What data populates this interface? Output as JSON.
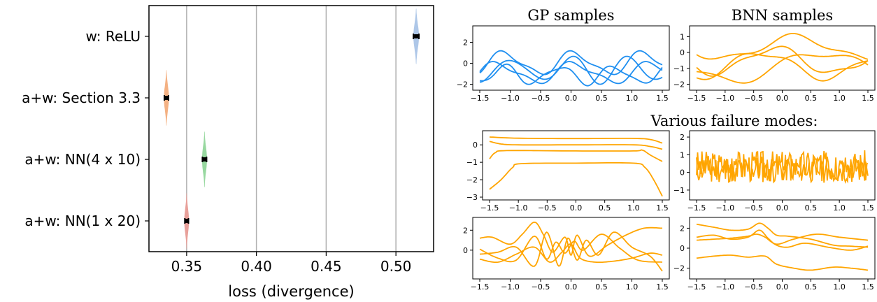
{
  "chart_data": [
    {
      "type": "violin",
      "xlabel": "loss (divergence)",
      "ylabel": "",
      "xlim": [
        0.323,
        0.527
      ],
      "xticks": [
        "0.35",
        "0.40",
        "0.45",
        "0.50"
      ],
      "xtick_values": [
        0.35,
        0.4,
        0.45,
        0.5
      ],
      "grid": "vertical",
      "categories": [
        "w: ReLU",
        "a+w: Section 3.3",
        "a+w: NN(4 x 10)",
        "a+w: NN(1 x 20)"
      ],
      "series": [
        {
          "mean": 0.5145,
          "spread": 0.002,
          "min": 0.5125,
          "max": 0.5165,
          "color": "#aec7e8"
        },
        {
          "mean": 0.3355,
          "spread": 0.0018,
          "min": 0.334,
          "max": 0.337,
          "color": "#f4b183"
        },
        {
          "mean": 0.3628,
          "spread": 0.0018,
          "min": 0.3613,
          "max": 0.3643,
          "color": "#98d8a0"
        },
        {
          "mean": 0.35,
          "spread": 0.0017,
          "min": 0.3487,
          "max": 0.3513,
          "color": "#e8a09a"
        }
      ]
    },
    {
      "type": "line",
      "title": "GP samples",
      "xlim": [
        -1.5,
        1.5
      ],
      "ylim": [
        -2.3,
        3.3
      ],
      "xticks": [
        "−1.5",
        "−1.0",
        "−0.5",
        "0.0",
        "0.5",
        "1.0",
        "1.5"
      ],
      "yticks": [
        "−2",
        "0",
        "2"
      ],
      "ytick_values": [
        -2,
        0,
        2
      ],
      "color": "#1f8ff0",
      "series": [
        {
          "waves": [
            [
              0.0,
              0.0,
              2.2,
              0.0
            ],
            [
              1.0,
              5.5,
              0.8,
              0.5
            ],
            [
              0.3,
              11.0,
              0.3,
              2.0
            ]
          ]
        },
        {
          "waves": [
            [
              -0.6,
              0.0,
              1.1,
              0.0
            ],
            [
              1.1,
              6.5,
              0.6,
              1.0
            ],
            [
              0.3,
              9.0,
              0.4,
              0.0
            ]
          ]
        },
        {
          "waves": [
            [
              -1.1,
              0.0,
              0.6,
              0.0
            ],
            [
              0.8,
              7.0,
              0.9,
              2.0
            ],
            [
              0.25,
              12.0,
              0.3,
              1.0
            ]
          ]
        },
        {
          "waves": [
            [
              -0.9,
              0.0,
              0.9,
              0.0
            ],
            [
              0.9,
              5.0,
              1.3,
              0.0
            ],
            [
              0.3,
              10.0,
              0.5,
              2.0
            ]
          ]
        }
      ]
    },
    {
      "type": "line",
      "title": "BNN samples",
      "xlim": [
        -1.5,
        1.5
      ],
      "ylim": [
        -2.2,
        1.5
      ],
      "xticks": [
        "−1.5",
        "−1.0",
        "−0.5",
        "0.0",
        "0.5",
        "1.0",
        "1.5"
      ],
      "yticks": [
        "−2",
        "−1",
        "0",
        "1"
      ],
      "ytick_values": [
        -2,
        -1,
        0,
        1
      ],
      "color": "#ffa500",
      "series": [
        {
          "waves": [
            [
              0.3,
              0.0,
              0.7,
              0.0
            ],
            [
              0.7,
              2.5,
              1.0,
              0.0
            ],
            [
              0.2,
              6.0,
              0.6,
              0.0
            ]
          ]
        },
        {
          "waves": [
            [
              -0.5,
              0.0,
              0.9,
              0.0
            ],
            [
              0.8,
              3.0,
              2.0,
              0.0
            ],
            [
              0.2,
              7.0,
              0.9,
              0.0
            ]
          ]
        },
        {
          "waves": [
            [
              -0.9,
              0.0,
              0.3,
              0.0
            ],
            [
              0.9,
              2.0,
              0.2,
              0.0
            ],
            [
              0.25,
              5.0,
              1.2,
              0.0
            ]
          ]
        },
        {
          "waves": [
            [
              -0.8,
              0.0,
              1.6,
              0.0
            ],
            [
              0.8,
              2.8,
              2.6,
              0.0
            ],
            [
              0.2,
              6.5,
              0.3,
              0.0
            ]
          ]
        }
      ]
    },
    {
      "type": "line",
      "title": "Various failure modes:",
      "xlim": [
        -1.5,
        1.5
      ],
      "ylim": [
        -3.0,
        0.65
      ],
      "xticks": [
        "−1.5",
        "−1.0",
        "−0.5",
        "0.0",
        "0.5",
        "1.0",
        "1.5"
      ],
      "yticks": [
        "−3",
        "−2",
        "−1",
        "0"
      ],
      "ytick_values": [
        -3,
        -2,
        -1,
        0
      ],
      "color": "#ffa500",
      "series": [
        {
          "points": [
            [
              -1.5,
              0.45
            ],
            [
              -1.0,
              0.38
            ],
            [
              0.0,
              0.36
            ],
            [
              1.0,
              0.37
            ],
            [
              1.3,
              0.3
            ],
            [
              1.5,
              0.1
            ]
          ]
        },
        {
          "points": [
            [
              -1.5,
              0.2
            ],
            [
              -1.3,
              0.05
            ],
            [
              -1.0,
              0.0
            ],
            [
              0.0,
              0.0
            ],
            [
              1.0,
              0.0
            ],
            [
              1.3,
              -0.1
            ],
            [
              1.5,
              -0.25
            ]
          ]
        },
        {
          "points": [
            [
              -1.5,
              -0.8
            ],
            [
              -1.4,
              -0.45
            ],
            [
              -1.2,
              -0.33
            ],
            [
              0.0,
              -0.35
            ],
            [
              1.0,
              -0.35
            ],
            [
              1.15,
              -0.3
            ],
            [
              1.3,
              -0.6
            ],
            [
              1.5,
              -0.95
            ]
          ]
        },
        {
          "points": [
            [
              -1.5,
              -2.55
            ],
            [
              -1.3,
              -2.0
            ],
            [
              -1.1,
              -1.3
            ],
            [
              -0.95,
              -1.08
            ],
            [
              0.0,
              -1.05
            ],
            [
              1.0,
              -1.05
            ],
            [
              1.2,
              -1.3
            ],
            [
              1.35,
              -2.0
            ],
            [
              1.5,
              -2.95
            ]
          ]
        }
      ]
    },
    {
      "type": "line",
      "title": "",
      "xlim": [
        -1.5,
        1.5
      ],
      "ylim": [
        -1.4,
        2.2
      ],
      "xticks": [
        "−1.5",
        "−1.0",
        "−0.5",
        "0.0",
        "0.5",
        "1.0",
        "1.5"
      ],
      "yticks": [
        "−1",
        "0",
        "1",
        "2"
      ],
      "ytick_values": [
        -1,
        0,
        1,
        2
      ],
      "color": "#ffa500",
      "series": [
        {
          "noise": {
            "base": 0.35,
            "amp": 0.9,
            "n": 160,
            "seed": 3
          }
        },
        {
          "noise": {
            "base": 0.2,
            "amp": 0.8,
            "n": 160,
            "seed": 11
          }
        }
      ]
    },
    {
      "type": "line",
      "title": "",
      "xlim": [
        -1.5,
        1.5
      ],
      "ylim": [
        -2.6,
        3.0
      ],
      "xticks": [
        "−1.5",
        "−1.0",
        "−0.5",
        "0.0",
        "0.5",
        "1.0",
        "1.5"
      ],
      "yticks": [
        "0",
        "2"
      ],
      "ytick_values": [
        0,
        2
      ],
      "color": "#ffa500",
      "series": [
        {
          "points": [
            [
              -1.5,
              1.2
            ],
            [
              -1.3,
              1.3
            ],
            [
              -1.0,
              0.6
            ],
            [
              -0.8,
              1.6
            ],
            [
              -0.6,
              2.8
            ],
            [
              -0.45,
              1.5
            ],
            [
              -0.3,
              -0.2
            ],
            [
              -0.1,
              1.3
            ],
            [
              0.0,
              -0.5
            ],
            [
              0.1,
              1.5
            ],
            [
              0.3,
              -0.6
            ],
            [
              0.6,
              0.5
            ],
            [
              0.9,
              1.5
            ],
            [
              1.2,
              2.2
            ],
            [
              1.5,
              2.2
            ]
          ]
        },
        {
          "points": [
            [
              -1.5,
              -0.4
            ],
            [
              -1.2,
              -0.2
            ],
            [
              -0.9,
              0.3
            ],
            [
              -0.6,
              -1.6
            ],
            [
              -0.4,
              1.8
            ],
            [
              -0.2,
              -1.6
            ],
            [
              -0.05,
              1.2
            ],
            [
              0.1,
              -1.0
            ],
            [
              0.25,
              1.0
            ],
            [
              0.45,
              -0.5
            ],
            [
              0.7,
              1.8
            ],
            [
              1.0,
              0.3
            ],
            [
              1.3,
              -0.6
            ],
            [
              1.5,
              -2.1
            ]
          ]
        },
        {
          "points": [
            [
              -1.5,
              -0.9
            ],
            [
              -1.2,
              -1.2
            ],
            [
              -0.9,
              -0.4
            ],
            [
              -0.6,
              0.3
            ],
            [
              -0.35,
              -1.2
            ],
            [
              -0.15,
              -0.2
            ],
            [
              0.0,
              0.6
            ],
            [
              0.15,
              -0.8
            ],
            [
              0.4,
              -1.2
            ],
            [
              0.7,
              -1.1
            ],
            [
              1.0,
              -0.8
            ],
            [
              1.3,
              -0.3
            ],
            [
              1.5,
              -0.5
            ]
          ]
        },
        {
          "points": [
            [
              -1.5,
              0.1
            ],
            [
              -1.2,
              -0.8
            ],
            [
              -0.9,
              -1.0
            ],
            [
              -0.6,
              1.4
            ],
            [
              -0.4,
              -0.9
            ],
            [
              -0.25,
              0.8
            ],
            [
              -0.1,
              -0.3
            ],
            [
              0.05,
              0.9
            ],
            [
              0.2,
              0.0
            ],
            [
              0.5,
              1.6
            ],
            [
              0.8,
              0.2
            ],
            [
              1.1,
              -1.0
            ],
            [
              1.5,
              -1.2
            ]
          ]
        }
      ]
    },
    {
      "type": "line",
      "title": "",
      "xlim": [
        -1.5,
        1.5
      ],
      "ylim": [
        -2.8,
        2.8
      ],
      "xticks": [
        "−1.5",
        "−1.0",
        "−0.5",
        "0.0",
        "0.5",
        "1.0",
        "1.5"
      ],
      "yticks": [
        "−2",
        "0",
        "2"
      ],
      "ytick_values": [
        -2,
        0,
        2
      ],
      "color": "#ffa500",
      "series": [
        {
          "points": [
            [
              -1.5,
              2.4
            ],
            [
              -1.2,
              2.1
            ],
            [
              -0.9,
              1.8
            ],
            [
              -0.6,
              1.9
            ],
            [
              -0.4,
              2.5
            ],
            [
              -0.25,
              2.0
            ],
            [
              -0.1,
              1.3
            ],
            [
              0.1,
              1.2
            ],
            [
              0.5,
              0.9
            ],
            [
              0.9,
              0.3
            ],
            [
              1.2,
              0.2
            ],
            [
              1.5,
              0.1
            ]
          ]
        },
        {
          "points": [
            [
              -1.5,
              1.1
            ],
            [
              -1.2,
              1.3
            ],
            [
              -0.9,
              0.9
            ],
            [
              -0.6,
              1.1
            ],
            [
              -0.4,
              1.8
            ],
            [
              -0.25,
              1.0
            ],
            [
              -0.1,
              0.3
            ],
            [
              0.1,
              0.1
            ],
            [
              0.4,
              0.5
            ],
            [
              0.8,
              0.1
            ],
            [
              1.2,
              -0.2
            ],
            [
              1.5,
              0.2
            ]
          ]
        },
        {
          "points": [
            [
              -1.5,
              0.8
            ],
            [
              -1.2,
              0.9
            ],
            [
              -0.9,
              1.0
            ],
            [
              -0.6,
              1.2
            ],
            [
              -0.45,
              1.4
            ],
            [
              -0.3,
              1.1
            ],
            [
              -0.1,
              0.4
            ],
            [
              0.2,
              0.9
            ],
            [
              0.6,
              1.4
            ],
            [
              1.0,
              1.1
            ],
            [
              1.5,
              0.8
            ]
          ]
        },
        {
          "points": [
            [
              -1.5,
              -1.0
            ],
            [
              -1.2,
              -0.8
            ],
            [
              -0.9,
              -0.7
            ],
            [
              -0.6,
              -0.9
            ],
            [
              -0.3,
              -0.8
            ],
            [
              -0.1,
              -1.6
            ],
            [
              0.2,
              -2.0
            ],
            [
              0.5,
              -2.2
            ],
            [
              0.9,
              -1.9
            ],
            [
              1.2,
              -2.0
            ],
            [
              1.5,
              -2.2
            ]
          ]
        }
      ]
    }
  ]
}
